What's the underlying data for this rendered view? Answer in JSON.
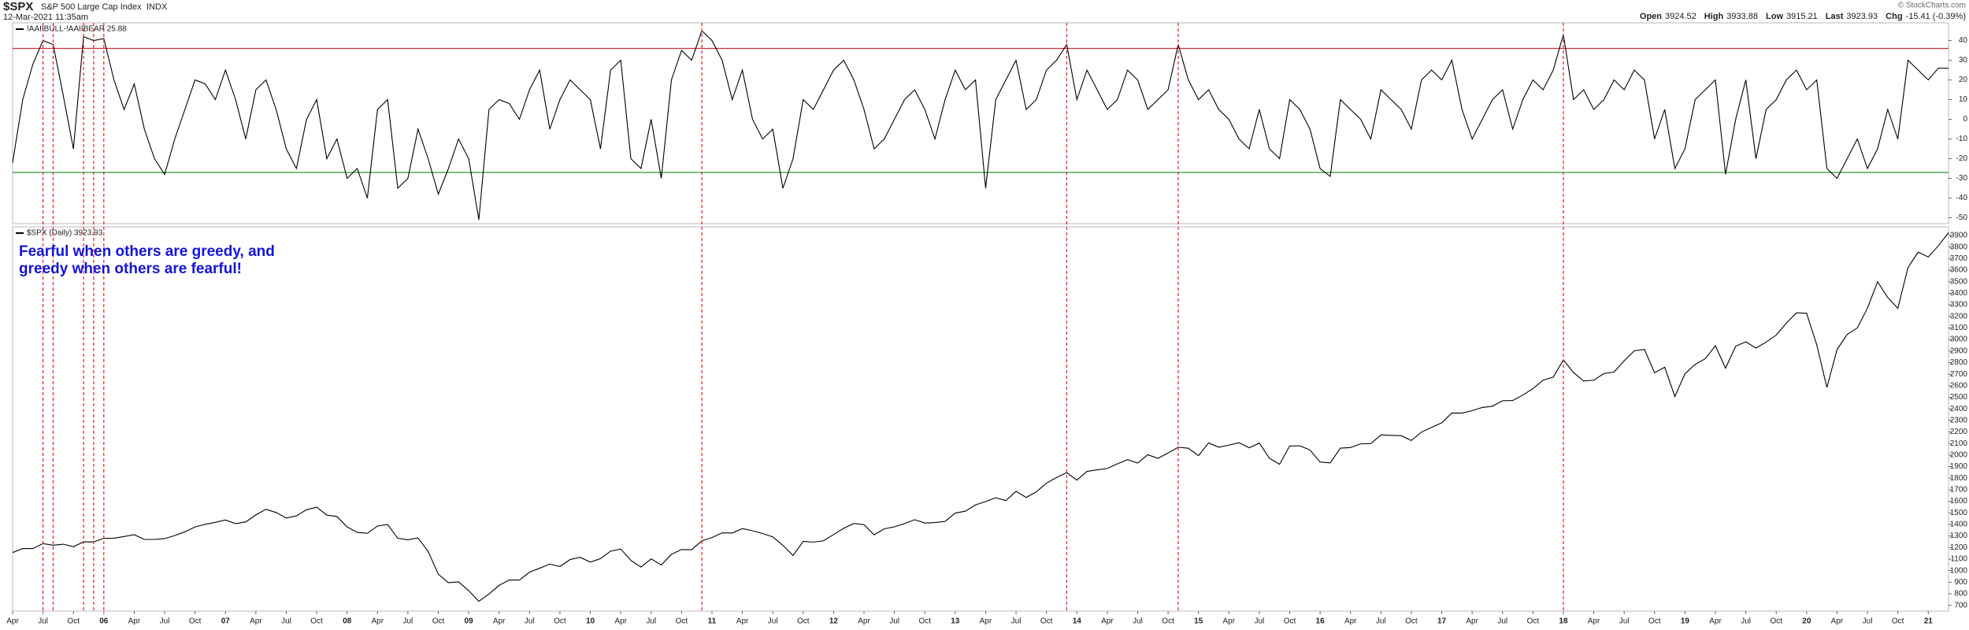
{
  "header": {
    "symbol": "$SPX",
    "name": "S&P 500 Large Cap Index",
    "exchange": "INDX",
    "date": "12-Mar-2021 11:35am",
    "copyright": "© StockCharts.com",
    "quote": [
      {
        "label": "Open",
        "value": "3924.52"
      },
      {
        "label": "High",
        "value": "3933.88"
      },
      {
        "label": "Low",
        "value": "3915.21"
      },
      {
        "label": "Last",
        "value": "3923.93"
      },
      {
        "label": "Chg",
        "value": "-15.41 (-0.39%)"
      }
    ]
  },
  "chart_data": {
    "type": "line",
    "annotation": [
      "Fearful when others are greedy, and",
      "greedy when others are fearful!"
    ],
    "annotation_color": "#1414d8",
    "xlim": [
      "2005-04",
      "2021-03"
    ],
    "x": [
      "2005-04",
      "2005-05",
      "2005-06",
      "2005-07",
      "2005-08",
      "2005-09",
      "2005-10",
      "2005-11",
      "2005-12",
      "2006-01",
      "2006-02",
      "2006-03",
      "2006-04",
      "2006-05",
      "2006-06",
      "2006-07",
      "2006-08",
      "2006-09",
      "2006-10",
      "2006-11",
      "2006-12",
      "2007-01",
      "2007-02",
      "2007-03",
      "2007-04",
      "2007-05",
      "2007-06",
      "2007-07",
      "2007-08",
      "2007-09",
      "2007-10",
      "2007-11",
      "2007-12",
      "2008-01",
      "2008-02",
      "2008-03",
      "2008-04",
      "2008-05",
      "2008-06",
      "2008-07",
      "2008-08",
      "2008-09",
      "2008-10",
      "2008-11",
      "2008-12",
      "2009-01",
      "2009-02",
      "2009-03",
      "2009-04",
      "2009-05",
      "2009-06",
      "2009-07",
      "2009-08",
      "2009-09",
      "2009-10",
      "2009-11",
      "2009-12",
      "2010-01",
      "2010-02",
      "2010-03",
      "2010-04",
      "2010-05",
      "2010-06",
      "2010-07",
      "2010-08",
      "2010-09",
      "2010-10",
      "2010-11",
      "2010-12",
      "2011-01",
      "2011-02",
      "2011-03",
      "2011-04",
      "2011-05",
      "2011-06",
      "2011-07",
      "2011-08",
      "2011-09",
      "2011-10",
      "2011-11",
      "2011-12",
      "2012-01",
      "2012-02",
      "2012-03",
      "2012-04",
      "2012-05",
      "2012-06",
      "2012-07",
      "2012-08",
      "2012-09",
      "2012-10",
      "2012-11",
      "2012-12",
      "2013-01",
      "2013-02",
      "2013-03",
      "2013-04",
      "2013-05",
      "2013-06",
      "2013-07",
      "2013-08",
      "2013-09",
      "2013-10",
      "2013-11",
      "2013-12",
      "2014-01",
      "2014-02",
      "2014-03",
      "2014-04",
      "2014-05",
      "2014-06",
      "2014-07",
      "2014-08",
      "2014-09",
      "2014-10",
      "2014-11",
      "2014-12",
      "2015-01",
      "2015-02",
      "2015-03",
      "2015-04",
      "2015-05",
      "2015-06",
      "2015-07",
      "2015-08",
      "2015-09",
      "2015-10",
      "2015-11",
      "2015-12",
      "2016-01",
      "2016-02",
      "2016-03",
      "2016-04",
      "2016-05",
      "2016-06",
      "2016-07",
      "2016-08",
      "2016-09",
      "2016-10",
      "2016-11",
      "2016-12",
      "2017-01",
      "2017-02",
      "2017-03",
      "2017-04",
      "2017-05",
      "2017-06",
      "2017-07",
      "2017-08",
      "2017-09",
      "2017-10",
      "2017-11",
      "2017-12",
      "2018-01",
      "2018-02",
      "2018-03",
      "2018-04",
      "2018-05",
      "2018-06",
      "2018-07",
      "2018-08",
      "2018-09",
      "2018-10",
      "2018-11",
      "2018-12",
      "2019-01",
      "2019-02",
      "2019-03",
      "2019-04",
      "2019-05",
      "2019-06",
      "2019-07",
      "2019-08",
      "2019-09",
      "2019-10",
      "2019-11",
      "2019-12",
      "2020-01",
      "2020-02",
      "2020-03",
      "2020-04",
      "2020-05",
      "2020-06",
      "2020-07",
      "2020-08",
      "2020-09",
      "2020-10",
      "2020-11",
      "2020-12",
      "2021-01",
      "2021-02",
      "2021-03"
    ],
    "xticks": [
      {
        "value": "2005-04",
        "label": "Apr"
      },
      {
        "value": "2005-07",
        "label": "Jul"
      },
      {
        "value": "2005-10",
        "label": "Oct"
      },
      {
        "value": "2006-01",
        "label": "06"
      },
      {
        "value": "2006-04",
        "label": "Apr"
      },
      {
        "value": "2006-07",
        "label": "Jul"
      },
      {
        "value": "2006-10",
        "label": "Oct"
      },
      {
        "value": "2007-01",
        "label": "07"
      },
      {
        "value": "2007-04",
        "label": "Apr"
      },
      {
        "value": "2007-07",
        "label": "Jul"
      },
      {
        "value": "2007-10",
        "label": "Oct"
      },
      {
        "value": "2008-01",
        "label": "08"
      },
      {
        "value": "2008-04",
        "label": "Apr"
      },
      {
        "value": "2008-07",
        "label": "Jul"
      },
      {
        "value": "2008-10",
        "label": "Oct"
      },
      {
        "value": "2009-01",
        "label": "09"
      },
      {
        "value": "2009-04",
        "label": "Apr"
      },
      {
        "value": "2009-07",
        "label": "Jul"
      },
      {
        "value": "2009-10",
        "label": "Oct"
      },
      {
        "value": "2010-01",
        "label": "10"
      },
      {
        "value": "2010-04",
        "label": "Apr"
      },
      {
        "value": "2010-07",
        "label": "Jul"
      },
      {
        "value": "2010-10",
        "label": "Oct"
      },
      {
        "value": "2011-01",
        "label": "11"
      },
      {
        "value": "2011-04",
        "label": "Apr"
      },
      {
        "value": "2011-07",
        "label": "Jul"
      },
      {
        "value": "2011-10",
        "label": "Oct"
      },
      {
        "value": "2012-01",
        "label": "12"
      },
      {
        "value": "2012-04",
        "label": "Apr"
      },
      {
        "value": "2012-07",
        "label": "Jul"
      },
      {
        "value": "2012-10",
        "label": "Oct"
      },
      {
        "value": "2013-01",
        "label": "13"
      },
      {
        "value": "2013-04",
        "label": "Apr"
      },
      {
        "value": "2013-07",
        "label": "Jul"
      },
      {
        "value": "2013-10",
        "label": "Oct"
      },
      {
        "value": "2014-01",
        "label": "14"
      },
      {
        "value": "2014-04",
        "label": "Apr"
      },
      {
        "value": "2014-07",
        "label": "Jul"
      },
      {
        "value": "2014-10",
        "label": "Oct"
      },
      {
        "value": "2015-01",
        "label": "15"
      },
      {
        "value": "2015-04",
        "label": "Apr"
      },
      {
        "value": "2015-07",
        "label": "Jul"
      },
      {
        "value": "2015-10",
        "label": "Oct"
      },
      {
        "value": "2016-01",
        "label": "16"
      },
      {
        "value": "2016-04",
        "label": "Apr"
      },
      {
        "value": "2016-07",
        "label": "Jul"
      },
      {
        "value": "2016-10",
        "label": "Oct"
      },
      {
        "value": "2017-01",
        "label": "17"
      },
      {
        "value": "2017-04",
        "label": "Apr"
      },
      {
        "value": "2017-07",
        "label": "Jul"
      },
      {
        "value": "2017-10",
        "label": "Oct"
      },
      {
        "value": "2018-01",
        "label": "18"
      },
      {
        "value": "2018-04",
        "label": "Apr"
      },
      {
        "value": "2018-07",
        "label": "Jul"
      },
      {
        "value": "2018-10",
        "label": "Oct"
      },
      {
        "value": "2019-01",
        "label": "19"
      },
      {
        "value": "2019-04",
        "label": "Apr"
      },
      {
        "value": "2019-07",
        "label": "Jul"
      },
      {
        "value": "2019-10",
        "label": "Oct"
      },
      {
        "value": "2020-01",
        "label": "20"
      },
      {
        "value": "2020-04",
        "label": "Apr"
      },
      {
        "value": "2020-07",
        "label": "Jul"
      },
      {
        "value": "2020-10",
        "label": "Oct"
      },
      {
        "value": "2021-01",
        "label": "21"
      }
    ],
    "event_lines": {
      "color": "#e02020",
      "x": [
        "2005-07",
        "2005-08",
        "2005-11",
        "2005-12",
        "2006-01",
        "2010-12",
        "2013-12",
        "2014-11",
        "2018-01"
      ]
    },
    "panels": [
      {
        "ylim": [
          -53,
          49
        ],
        "yticks": [
          40,
          30,
          20,
          10,
          0,
          -10,
          -20,
          -30,
          -40,
          -50
        ],
        "hlines": [
          {
            "value": 36,
            "color": "#d03030"
          },
          {
            "value": -27,
            "color": "#2a9a2a"
          }
        ],
        "series": [
          {
            "name": "!AAIIBULL-!AAIIBEAR 25.88",
            "color": "#000000",
            "values": [
              -22,
              10,
              28,
              40,
              38,
              12,
              -15,
              42,
              40,
              41,
              20,
              5,
              18,
              -5,
              -20,
              -28,
              -10,
              5,
              20,
              18,
              10,
              25,
              10,
              -10,
              15,
              20,
              5,
              -15,
              -25,
              0,
              10,
              -20,
              -10,
              -30,
              -25,
              -40,
              5,
              10,
              -35,
              -30,
              -5,
              -20,
              -38,
              -25,
              -10,
              -20,
              -51,
              5,
              10,
              8,
              0,
              15,
              25,
              -5,
              10,
              20,
              15,
              10,
              -15,
              25,
              30,
              -20,
              -25,
              0,
              -30,
              20,
              35,
              30,
              45,
              40,
              30,
              10,
              25,
              0,
              -10,
              -5,
              -35,
              -20,
              10,
              5,
              15,
              25,
              30,
              20,
              5,
              -15,
              -10,
              0,
              10,
              15,
              5,
              -10,
              10,
              25,
              15,
              20,
              -35,
              10,
              20,
              30,
              5,
              10,
              25,
              30,
              38,
              10,
              25,
              15,
              5,
              10,
              25,
              20,
              5,
              10,
              15,
              38,
              20,
              10,
              15,
              5,
              0,
              -10,
              -15,
              5,
              -15,
              -20,
              10,
              5,
              -5,
              -25,
              -29,
              10,
              5,
              0,
              -10,
              15,
              10,
              5,
              -5,
              20,
              25,
              20,
              30,
              5,
              -10,
              0,
              10,
              15,
              -5,
              10,
              20,
              15,
              25,
              43,
              10,
              15,
              5,
              10,
              20,
              15,
              25,
              20,
              -10,
              5,
              -25,
              -15,
              10,
              15,
              20,
              -28,
              0,
              20,
              -20,
              5,
              10,
              20,
              25,
              15,
              20,
              -25,
              -30,
              -20,
              -10,
              -25,
              -15,
              5,
              -10,
              30,
              25,
              20,
              26,
              25.88
            ]
          }
        ]
      },
      {
        "ylim": [
          650,
          3975
        ],
        "yticks": [
          700,
          800,
          900,
          1000,
          1100,
          1200,
          1300,
          1400,
          1500,
          1600,
          1700,
          1800,
          1900,
          2000,
          2100,
          2200,
          2300,
          2400,
          2500,
          2600,
          2700,
          2800,
          2900,
          3000,
          3100,
          3200,
          3300,
          3400,
          3500,
          3600,
          3700,
          3800,
          3900
        ],
        "series": [
          {
            "name": "$SPX (Daily) 3923.93",
            "color": "#000000",
            "values": [
              1157,
              1191,
              1191,
              1234,
              1220,
              1229,
              1207,
              1249,
              1248,
              1280,
              1281,
              1295,
              1311,
              1270,
              1270,
              1277,
              1304,
              1336,
              1378,
              1401,
              1418,
              1438,
              1407,
              1421,
              1482,
              1531,
              1503,
              1455,
              1474,
              1527,
              1549,
              1481,
              1468,
              1379,
              1331,
              1323,
              1386,
              1400,
              1280,
              1267,
              1283,
              1166,
              969,
              896,
              903,
              826,
              735,
              798,
              873,
              919,
              919,
              987,
              1021,
              1057,
              1036,
              1096,
              1115,
              1074,
              1104,
              1169,
              1187,
              1089,
              1031,
              1102,
              1049,
              1141,
              1183,
              1181,
              1258,
              1286,
              1327,
              1326,
              1364,
              1345,
              1321,
              1292,
              1219,
              1131,
              1253,
              1247,
              1258,
              1312,
              1366,
              1408,
              1398,
              1310,
              1362,
              1379,
              1407,
              1441,
              1412,
              1416,
              1426,
              1498,
              1515,
              1569,
              1598,
              1631,
              1606,
              1686,
              1633,
              1682,
              1757,
              1806,
              1848,
              1783,
              1859,
              1872,
              1884,
              1924,
              1960,
              1931,
              2003,
              1972,
              2018,
              2068,
              2059,
              1995,
              2105,
              2068,
              2086,
              2107,
              2063,
              2104,
              1972,
              1920,
              2079,
              2080,
              2044,
              1940,
              1932,
              2060,
              2065,
              2097,
              2099,
              2174,
              2171,
              2168,
              2126,
              2199,
              2239,
              2279,
              2364,
              2363,
              2384,
              2412,
              2423,
              2470,
              2472,
              2519,
              2575,
              2648,
              2674,
              2824,
              2714,
              2641,
              2648,
              2705,
              2718,
              2816,
              2902,
              2914,
              2712,
              2760,
              2507,
              2704,
              2784,
              2834,
              2946,
              2752,
              2942,
              2980,
              2926,
              2977,
              3038,
              3141,
              3231,
              3226,
              2954,
              2585,
              2912,
              3044,
              3100,
              3271,
              3500,
              3363,
              3270,
              3622,
              3756,
              3714,
              3811,
              3924
            ]
          }
        ]
      }
    ]
  }
}
